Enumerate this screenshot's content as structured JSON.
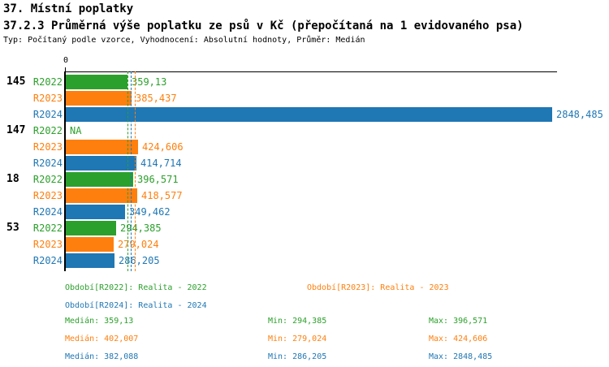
{
  "page": {
    "title_line1": "37. Místní poplatky",
    "title_line2": "37.2.3 Průměrná výše poplatku ze psů v Kč (přepočítaná na 1 evidovaného psa)",
    "subtitle": "Typ: Počítaný podle vzorce, Vyhodnocení: Absolutní hodnoty, Průměr: Medián"
  },
  "colors": {
    "R2022": "#2ca02c",
    "R2023": "#ff7f0e",
    "R2024": "#1f77b4",
    "axis": "#000000"
  },
  "chart_data": {
    "type": "bar",
    "orientation": "horizontal",
    "x_axis": {
      "zero_label": "0",
      "max": 2848.485,
      "grid": false
    },
    "groups": [
      {
        "id": "145",
        "bars": [
          {
            "series": "R2022",
            "value": 359.13,
            "label": "359,13"
          },
          {
            "series": "R2023",
            "value": 385.437,
            "label": "385,437"
          },
          {
            "series": "R2024",
            "value": 2848.485,
            "label": "2848,485"
          }
        ]
      },
      {
        "id": "147",
        "bars": [
          {
            "series": "R2022",
            "value": null,
            "label": "NA"
          },
          {
            "series": "R2023",
            "value": 424.606,
            "label": "424,606"
          },
          {
            "series": "R2024",
            "value": 414.714,
            "label": "414,714"
          }
        ]
      },
      {
        "id": "18",
        "bars": [
          {
            "series": "R2022",
            "value": 396.571,
            "label": "396,571"
          },
          {
            "series": "R2023",
            "value": 418.577,
            "label": "418,577"
          },
          {
            "series": "R2024",
            "value": 349.462,
            "label": "349,462"
          }
        ]
      },
      {
        "id": "53",
        "bars": [
          {
            "series": "R2022",
            "value": 294.385,
            "label": "294,385"
          },
          {
            "series": "R2023",
            "value": 279.024,
            "label": "279,024"
          },
          {
            "series": "R2024",
            "value": 286.205,
            "label": "286,205"
          }
        ]
      }
    ],
    "median_lines": [
      {
        "series": "R2022",
        "value": 359.13
      },
      {
        "series": "R2024",
        "value": 382.088
      },
      {
        "series": "R2023",
        "value": 402.007
      }
    ],
    "legend": [
      {
        "series": "R2022",
        "label": "Období[R2022]: Realita - 2022"
      },
      {
        "series": "R2023",
        "label": "Období[R2023]: Realita - 2023"
      },
      {
        "series": "R2024",
        "label": "Období[R2024]: Realita - 2024"
      }
    ],
    "stats": [
      {
        "series": "R2022",
        "median": "Medián: 359,13",
        "min": "Min: 294,385",
        "max": "Max: 396,571"
      },
      {
        "series": "R2023",
        "median": "Medián: 402,007",
        "min": "Min: 279,024",
        "max": "Max: 424,606"
      },
      {
        "series": "R2024",
        "median": "Medián: 382,088",
        "min": "Min: 286,205",
        "max": "Max: 2848,485"
      }
    ]
  }
}
